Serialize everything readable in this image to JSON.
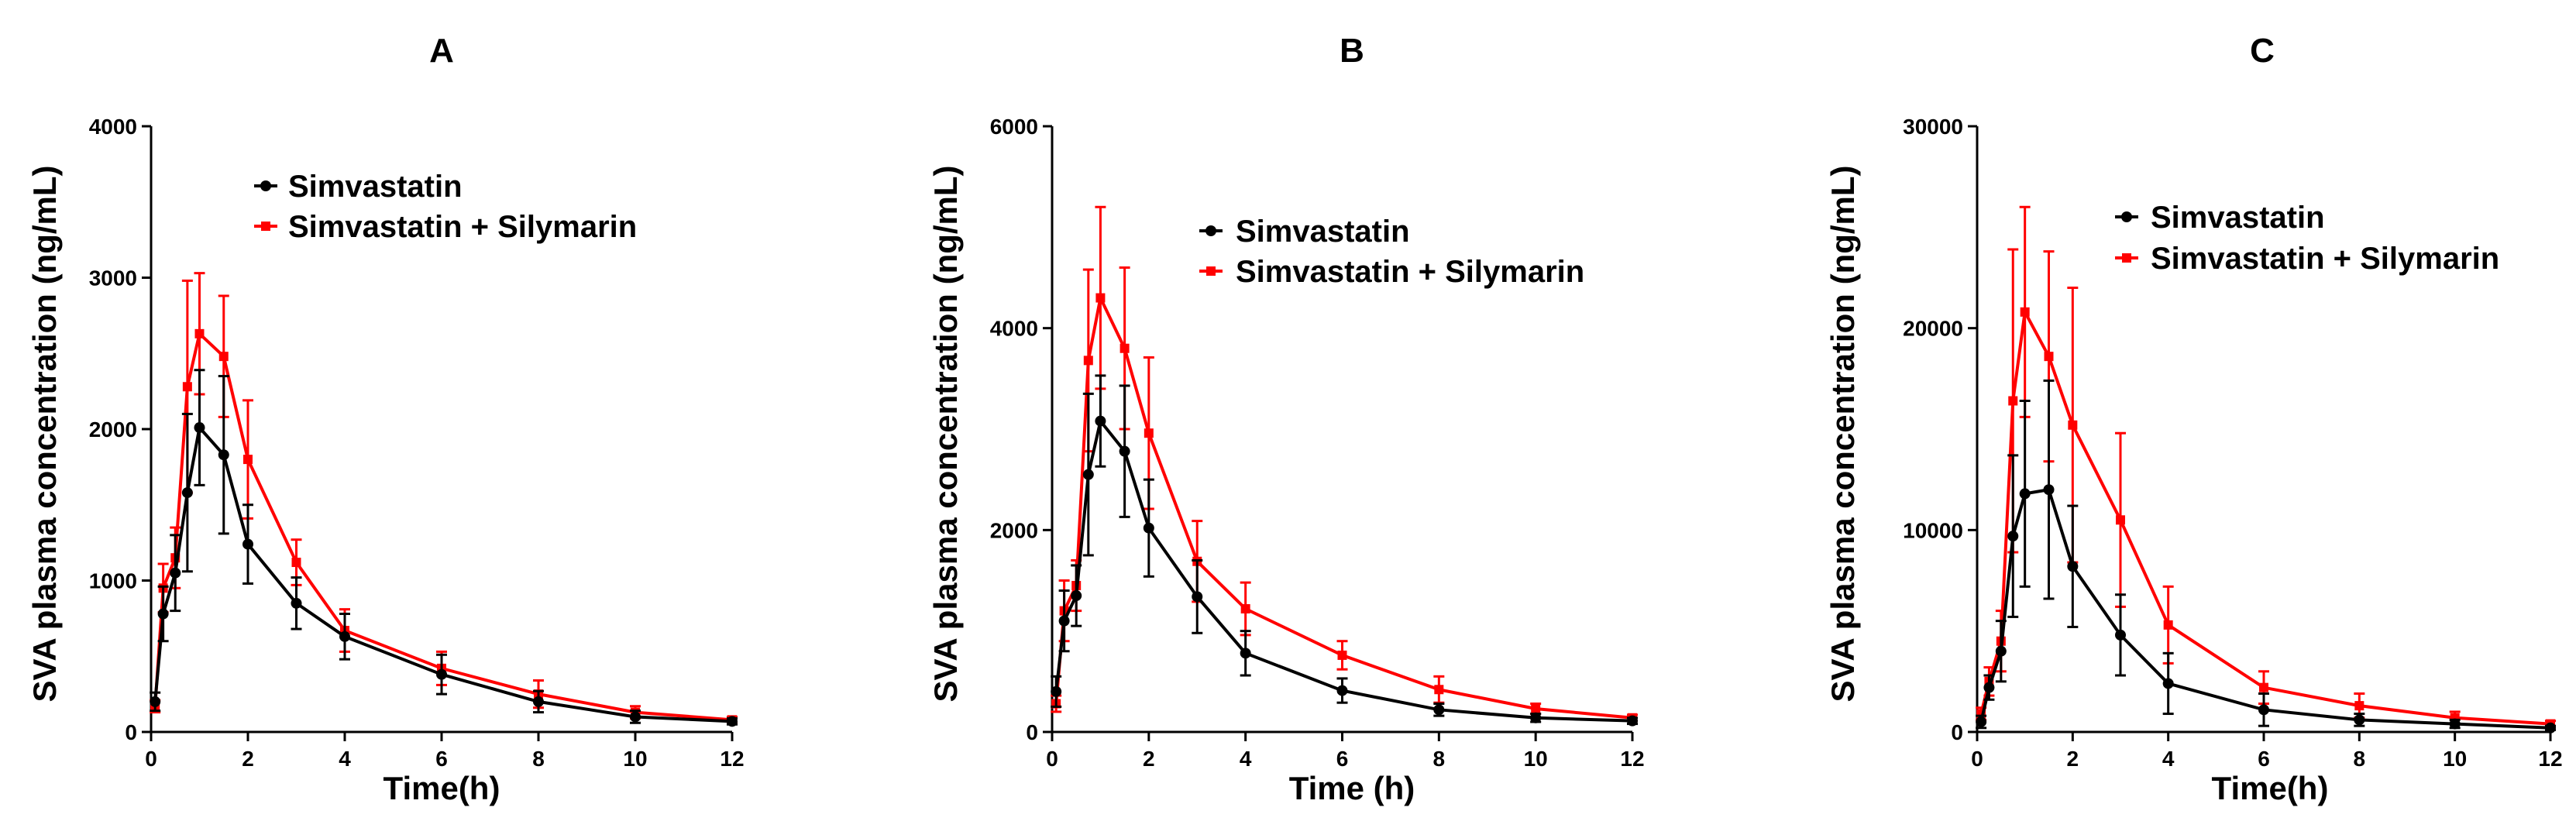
{
  "colors": {
    "series1": "#000000",
    "series2": "#ff0000"
  },
  "chart_data": [
    {
      "type": "line",
      "title": "A",
      "xlabel": "Time(h)",
      "ylabel": "SVA plasma concentration (ng/mL)",
      "xlim": [
        0,
        12
      ],
      "ylim": [
        0,
        4000
      ],
      "xticks": [
        0,
        2,
        4,
        6,
        8,
        10,
        12
      ],
      "yticks": [
        0,
        1000,
        2000,
        3000,
        4000
      ],
      "xtick_labels": [
        "0",
        "2",
        "4",
        "6",
        "8",
        "10",
        "12"
      ],
      "ytick_labels": [
        "0",
        "1000",
        "2000",
        "3000",
        "4000"
      ],
      "x": [
        0.083,
        0.25,
        0.5,
        0.75,
        1,
        1.5,
        2,
        3,
        4,
        6,
        8,
        10,
        12
      ],
      "series": [
        {
          "name": "Simvastatin",
          "values": [
            200,
            780,
            1050,
            1580,
            2010,
            1830,
            1240,
            850,
            630,
            380,
            200,
            100,
            70
          ],
          "errors": [
            60,
            180,
            250,
            520,
            380,
            520,
            260,
            170,
            150,
            130,
            70,
            40,
            20
          ]
        },
        {
          "name": "Simvastatin + Silymarin",
          "values": [
            170,
            950,
            1150,
            2280,
            2630,
            2480,
            1800,
            1120,
            670,
            420,
            250,
            130,
            80
          ],
          "errors": [
            40,
            160,
            200,
            700,
            400,
            400,
            390,
            150,
            140,
            110,
            90,
            40,
            20
          ]
        }
      ]
    },
    {
      "type": "line",
      "title": "B",
      "xlabel": "Time (h)",
      "ylabel": "SVA plasma concentration (ng/mL)",
      "xlim": [
        0,
        12
      ],
      "ylim": [
        0,
        6000
      ],
      "xticks": [
        0,
        2,
        4,
        6,
        8,
        10,
        12
      ],
      "yticks": [
        0,
        2000,
        4000,
        6000
      ],
      "xtick_labels": [
        "0",
        "2",
        "4",
        "6",
        "8",
        "10",
        "12"
      ],
      "ytick_labels": [
        "0",
        "2000",
        "4000",
        "6000"
      ],
      "x": [
        0.083,
        0.25,
        0.5,
        0.75,
        1,
        1.5,
        2,
        3,
        4,
        6,
        8,
        10,
        12
      ],
      "series": [
        {
          "name": "Simvastatin",
          "values": [
            400,
            1100,
            1350,
            2550,
            3080,
            2780,
            2020,
            1340,
            780,
            410,
            220,
            140,
            110
          ],
          "errors": [
            150,
            300,
            300,
            800,
            450,
            650,
            480,
            360,
            220,
            120,
            60,
            40,
            30
          ]
        },
        {
          "name": "Simvastatin + Silymarin",
          "values": [
            280,
            1200,
            1450,
            3680,
            4300,
            3800,
            2960,
            1690,
            1220,
            760,
            420,
            230,
            140
          ],
          "errors": [
            80,
            300,
            250,
            900,
            900,
            800,
            750,
            400,
            260,
            140,
            130,
            50,
            30
          ]
        }
      ]
    },
    {
      "type": "line",
      "title": "C",
      "xlabel": "Time(h)",
      "ylabel": "SVA plasma concentration (ng/mL)",
      "xlim": [
        0,
        12
      ],
      "ylim": [
        0,
        30000
      ],
      "xticks": [
        0,
        2,
        4,
        6,
        8,
        10,
        12
      ],
      "yticks": [
        0,
        10000,
        20000,
        30000
      ],
      "xtick_labels": [
        "0",
        "2",
        "4",
        "6",
        "8",
        "10",
        "12"
      ],
      "ytick_labels": [
        "0",
        "10000",
        "20000",
        "30000"
      ],
      "x": [
        0.083,
        0.25,
        0.5,
        0.75,
        1,
        1.5,
        2,
        3,
        4,
        6,
        8,
        10,
        12
      ],
      "series": [
        {
          "name": "Simvastatin",
          "values": [
            500,
            2200,
            4000,
            9700,
            11800,
            12000,
            8200,
            4800,
            2400,
            1100,
            600,
            400,
            200
          ],
          "errors": [
            300,
            600,
            1500,
            4000,
            4600,
            5400,
            3000,
            2000,
            1500,
            800,
            300,
            200,
            100
          ]
        },
        {
          "name": "Simvastatin + Silymarin",
          "values": [
            900,
            2500,
            4500,
            16400,
            20800,
            18600,
            15200,
            10500,
            5300,
            2200,
            1300,
            700,
            400
          ],
          "errors": [
            300,
            700,
            1500,
            7500,
            5200,
            5200,
            6800,
            4300,
            1900,
            800,
            600,
            300,
            150
          ]
        }
      ]
    }
  ]
}
